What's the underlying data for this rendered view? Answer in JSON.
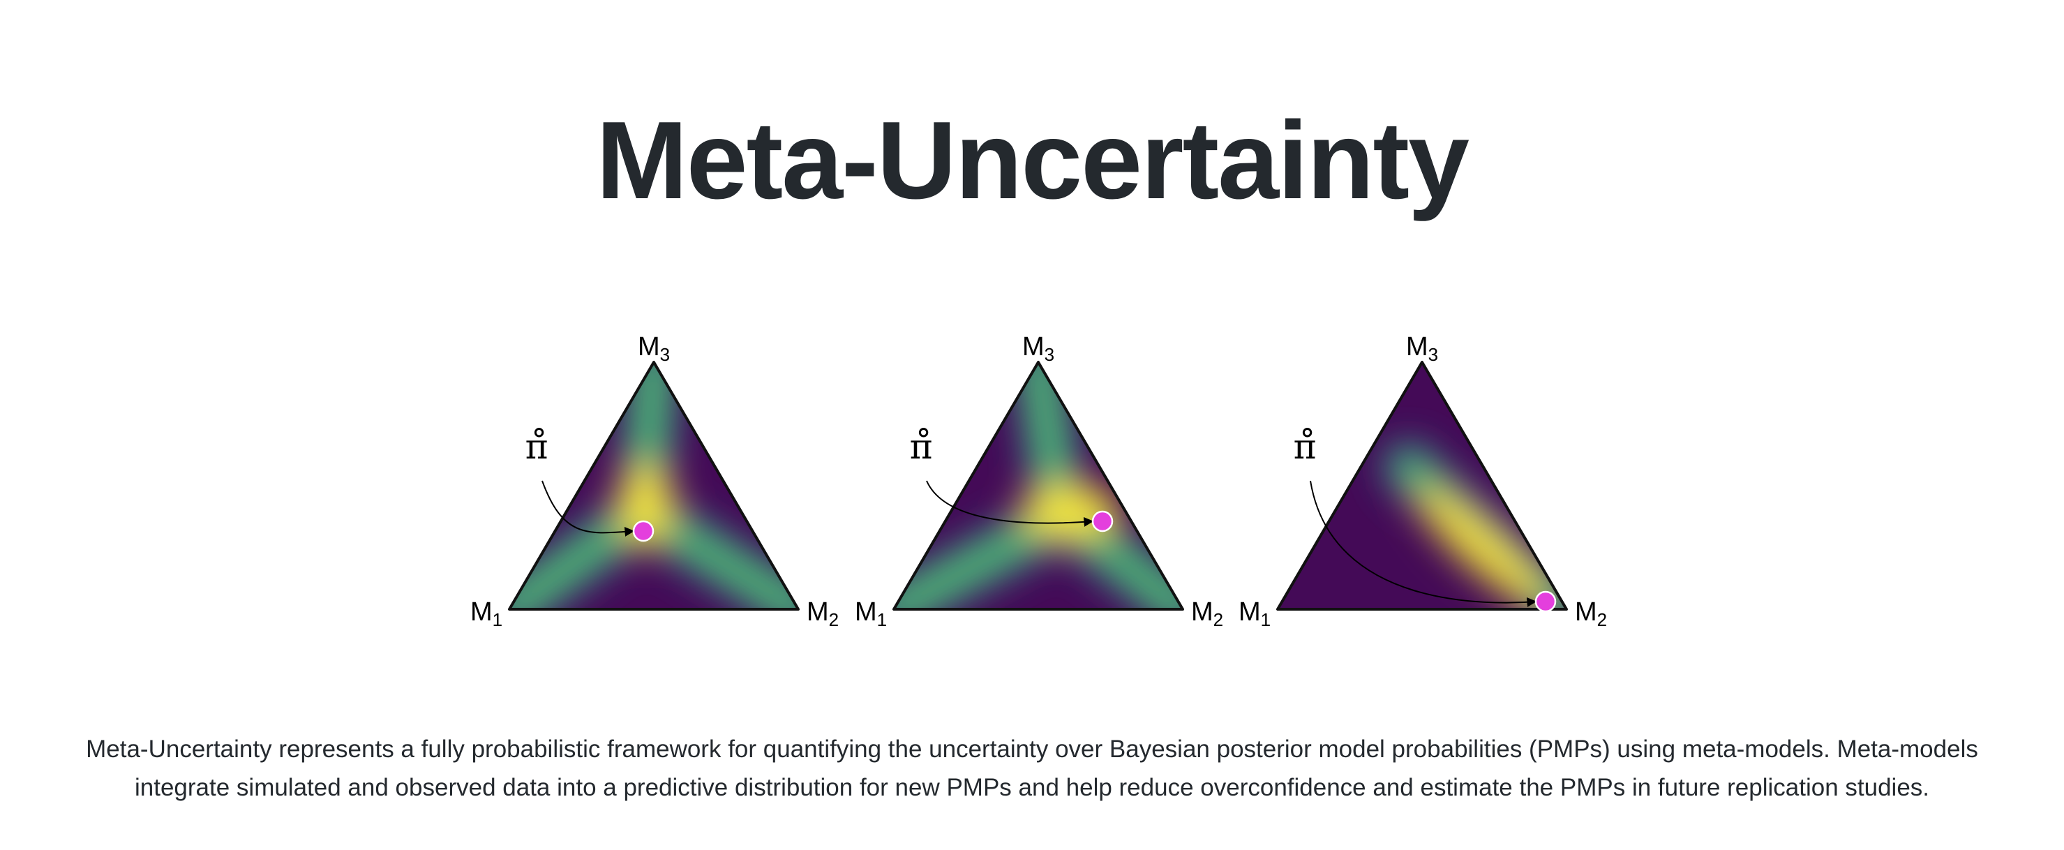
{
  "header": {
    "title": "Meta-Uncertainty"
  },
  "figure": {
    "panels": [
      {
        "vertices": [
          {
            "name": "M",
            "sub": "1"
          },
          {
            "name": "M",
            "sub": "2"
          },
          {
            "name": "M",
            "sub": "3"
          }
        ],
        "pointer": "π̊"
      },
      {
        "vertices": [
          {
            "name": "M",
            "sub": "1"
          },
          {
            "name": "M",
            "sub": "2"
          },
          {
            "name": "M",
            "sub": "3"
          }
        ],
        "pointer": "π̊"
      },
      {
        "vertices": [
          {
            "name": "M",
            "sub": "1"
          },
          {
            "name": "M",
            "sub": "2"
          },
          {
            "name": "M",
            "sub": "3"
          }
        ],
        "pointer": "π̊"
      }
    ]
  },
  "description": "Meta-Uncertainty represents a fully probabilistic framework for quantifying the uncertainty over Bayesian posterior model probabilities (PMPs) using meta-models. Meta-models integrate simulated and observed data into a predictive distribution for new PMPs and help reduce overconfidence and estimate the PMPs in future replication studies."
}
